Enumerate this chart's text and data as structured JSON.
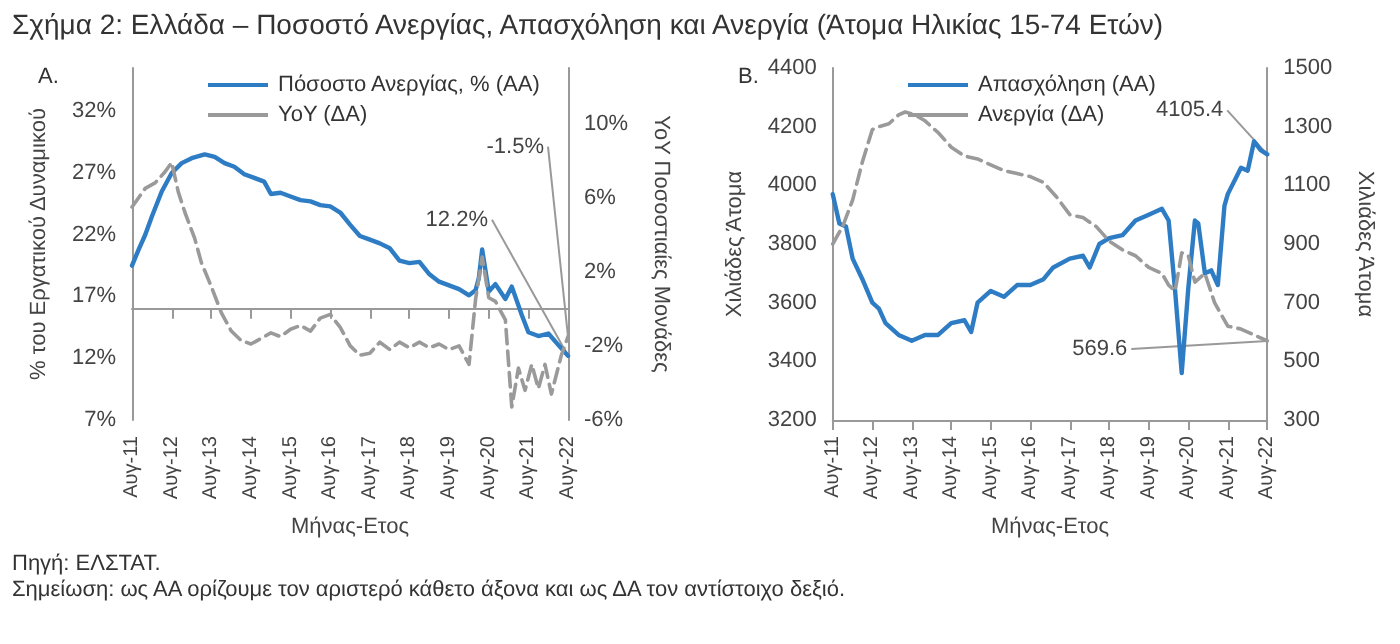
{
  "chart_data": [
    {
      "type": "line",
      "title": "Σχήμα 2: Ελλάδα – Ποσοστό Ανεργίας, Απασχόληση και Ανεργία (Άτομα Ηλικίας 15-74 Ετών)",
      "subtitle": "A.",
      "xlabel": "Μήνας-Ετος",
      "ylabel": "% του Εργατικού Δυναμικού",
      "y2label": "YoY Ποσοστιαίες Μονάδες",
      "legend": "top",
      "grid": false,
      "marker": "none",
      "xlim": [
        "2011-08",
        "2022-08"
      ],
      "xticks": [
        {
          "value": "2011-08",
          "label": "Αυγ-11"
        },
        {
          "value": "2012-08",
          "label": "Αυγ-12"
        },
        {
          "value": "2013-08",
          "label": "Αυγ-13"
        },
        {
          "value": "2014-08",
          "label": "Αυγ-14"
        },
        {
          "value": "2015-08",
          "label": "Αυγ-15"
        },
        {
          "value": "2016-08",
          "label": "Αυγ-16"
        },
        {
          "value": "2017-08",
          "label": "Αυγ-17"
        },
        {
          "value": "2018-08",
          "label": "Αυγ-18"
        },
        {
          "value": "2019-08",
          "label": "Αυγ-19"
        },
        {
          "value": "2020-08",
          "label": "Αυγ-20"
        },
        {
          "value": "2021-08",
          "label": "Αυγ-21"
        },
        {
          "value": "2022-08",
          "label": "Αυγ-22"
        }
      ],
      "ylim": [
        7,
        35.5
      ],
      "yticks": [
        {
          "value": 7,
          "label": "7%"
        },
        {
          "value": 12,
          "label": "12%"
        },
        {
          "value": 17,
          "label": "17%"
        },
        {
          "value": 22,
          "label": "22%"
        },
        {
          "value": 27,
          "label": "27%"
        },
        {
          "value": 32,
          "label": "32%"
        }
      ],
      "y2lim": [
        -6,
        13
      ],
      "y2ticks": [
        {
          "value": -6,
          "label": "-6%"
        },
        {
          "value": -2,
          "label": "-2%"
        },
        {
          "value": 2,
          "label": "2%"
        },
        {
          "value": 6,
          "label": "6%"
        },
        {
          "value": 10,
          "label": "10%"
        }
      ],
      "series": [
        {
          "name": "Πόσοστο Ανεργίας, % (ΑΑ)",
          "color": "#2e7dc4",
          "line_style": "solid",
          "x": [
            "2011-08",
            "2011-10",
            "2011-12",
            "2012-02",
            "2012-05",
            "2012-08",
            "2012-11",
            "2013-02",
            "2013-06",
            "2013-09",
            "2013-12",
            "2014-03",
            "2014-06",
            "2014-09",
            "2014-12",
            "2015-02",
            "2015-05",
            "2015-08",
            "2015-11",
            "2016-02",
            "2016-05",
            "2016-08",
            "2016-11",
            "2017-02",
            "2017-05",
            "2017-08",
            "2017-11",
            "2018-02",
            "2018-05",
            "2018-08",
            "2018-11",
            "2019-02",
            "2019-05",
            "2019-08",
            "2019-11",
            "2020-02",
            "2020-04",
            "2020-05",
            "2020-06",
            "2020-08",
            "2020-10",
            "2020-12",
            "2021-01",
            "2021-03",
            "2021-06",
            "2021-08",
            "2021-11",
            "2022-02",
            "2022-05",
            "2022-08"
          ],
          "values": [
            19.5,
            20.8,
            22,
            23.5,
            25.5,
            27,
            27.8,
            28.2,
            28.5,
            28.3,
            27.8,
            27.5,
            26.9,
            26.6,
            26.3,
            25.3,
            25.4,
            25.1,
            24.8,
            24.7,
            24.4,
            24.3,
            23.8,
            22.8,
            21.9,
            21.6,
            21.3,
            20.9,
            19.9,
            19.7,
            19.8,
            18.8,
            18.2,
            17.9,
            17.6,
            17.1,
            17.5,
            18.5,
            20.8,
            17.4,
            18,
            17.2,
            16.8,
            17.8,
            15.5,
            14.1,
            13.8,
            14,
            13.1,
            12.2
          ],
          "value_labels": [
            null,
            null,
            null,
            null,
            null,
            null,
            null,
            null,
            null,
            null,
            null,
            null,
            null,
            null,
            null,
            null,
            null,
            null,
            null,
            null,
            null,
            null,
            null,
            null,
            null,
            null,
            null,
            null,
            null,
            null,
            null,
            null,
            null,
            null,
            null,
            null,
            null,
            null,
            null,
            null,
            null,
            null,
            null,
            null,
            null,
            null,
            null,
            null,
            null,
            "12.2%"
          ]
        },
        {
          "name": "YoY (ΔΑ)",
          "color": "#9a9a9a",
          "line_style": "dashed",
          "axis": "y2",
          "x": [
            "2011-08",
            "2011-10",
            "2011-12",
            "2012-03",
            "2012-06",
            "2012-08",
            "2012-10",
            "2012-12",
            "2013-03",
            "2013-05",
            "2013-08",
            "2013-11",
            "2014-02",
            "2014-05",
            "2014-08",
            "2014-11",
            "2015-02",
            "2015-05",
            "2015-08",
            "2015-11",
            "2016-02",
            "2016-05",
            "2016-08",
            "2016-11",
            "2017-02",
            "2017-05",
            "2017-08",
            "2017-11",
            "2018-02",
            "2018-05",
            "2018-08",
            "2018-11",
            "2019-02",
            "2019-05",
            "2019-08",
            "2019-11",
            "2020-02",
            "2020-04",
            "2020-06",
            "2020-08",
            "2020-10",
            "2021-01",
            "2021-03",
            "2021-05",
            "2021-07",
            "2021-09",
            "2021-11",
            "2022-01",
            "2022-03",
            "2022-06",
            "2022-08"
          ],
          "values": [
            5.5,
            6,
            6.5,
            6.8,
            7.4,
            7.9,
            6.3,
            5.2,
            3.8,
            2.5,
            1.2,
            -0.2,
            -1.2,
            -1.7,
            -1.9,
            -1.6,
            -1.3,
            -1.5,
            -1.1,
            -0.9,
            -1.2,
            -0.5,
            -0.3,
            -1,
            -2,
            -2.5,
            -2.4,
            -1.8,
            -2.2,
            -1.8,
            -2.1,
            -1.8,
            -2.1,
            -1.9,
            -2.2,
            -2,
            -3,
            0.5,
            2.8,
            0.6,
            0.4,
            -0.6,
            -5.3,
            -3.2,
            -4.4,
            -3,
            -4.3,
            -3,
            -4.6,
            -2.5,
            -1.5
          ],
          "value_labels": [
            null,
            null,
            null,
            null,
            null,
            null,
            null,
            null,
            null,
            null,
            null,
            null,
            null,
            null,
            null,
            null,
            null,
            null,
            null,
            null,
            null,
            null,
            null,
            null,
            null,
            null,
            null,
            null,
            null,
            null,
            null,
            null,
            null,
            null,
            null,
            null,
            null,
            null,
            null,
            null,
            null,
            null,
            null,
            null,
            null,
            null,
            null,
            null,
            null,
            null,
            "-1.5%"
          ]
        }
      ]
    },
    {
      "type": "line",
      "title": "B.",
      "xlabel": "Μήνας-Ετος",
      "ylabel": "Χιλιάδες Άτομα",
      "y2label": "Χιλιάδες Άτομα",
      "legend": "top",
      "grid": false,
      "marker": "none",
      "xlim": [
        "2011-08",
        "2022-08"
      ],
      "xticks": [
        {
          "value": "2011-08",
          "label": "Αυγ-11"
        },
        {
          "value": "2012-08",
          "label": "Αυγ-12"
        },
        {
          "value": "2013-08",
          "label": "Αυγ-13"
        },
        {
          "value": "2014-08",
          "label": "Αυγ-14"
        },
        {
          "value": "2015-08",
          "label": "Αυγ-15"
        },
        {
          "value": "2016-08",
          "label": "Αυγ-16"
        },
        {
          "value": "2017-08",
          "label": "Αυγ-17"
        },
        {
          "value": "2018-08",
          "label": "Αυγ-18"
        },
        {
          "value": "2019-08",
          "label": "Αυγ-19"
        },
        {
          "value": "2020-08",
          "label": "Αυγ-20"
        },
        {
          "value": "2021-08",
          "label": "Αυγ-21"
        },
        {
          "value": "2022-08",
          "label": "Αυγ-22"
        }
      ],
      "ylim": [
        3200,
        4400
      ],
      "yticks": [
        3200,
        3400,
        3600,
        3800,
        4000,
        4200,
        4400
      ],
      "y2lim": [
        300,
        1500
      ],
      "y2ticks": [
        300,
        500,
        700,
        900,
        1100,
        1300,
        1500
      ],
      "annotations": [
        "Πηγή: ΕΛΣΤΑΤ.",
        "Σημείωση: ως ΑΑ ορίζουμε τον αριστερό κάθετο άξονα και ως ΔΑ τον αντίστοιχο δεξιό."
      ],
      "series": [
        {
          "name": "Απασχόληση (ΑΑ)",
          "color": "#2e7dc4",
          "line_style": "solid",
          "x": [
            "2011-08",
            "2011-10",
            "2011-12",
            "2012-02",
            "2012-05",
            "2012-08",
            "2012-10",
            "2012-12",
            "2013-04",
            "2013-08",
            "2013-12",
            "2014-04",
            "2014-08",
            "2014-12",
            "2015-02",
            "2015-04",
            "2015-08",
            "2015-12",
            "2016-04",
            "2016-08",
            "2016-12",
            "2017-03",
            "2017-08",
            "2017-12",
            "2018-02",
            "2018-05",
            "2018-08",
            "2018-12",
            "2019-04",
            "2019-08",
            "2019-12",
            "2020-02",
            "2020-04",
            "2020-06",
            "2020-08",
            "2020-10",
            "2020-11",
            "2021-01",
            "2021-03",
            "2021-05",
            "2021-07",
            "2021-08",
            "2021-12",
            "2022-02",
            "2022-04",
            "2022-06",
            "2022-08"
          ],
          "values": [
            3970,
            3870,
            3860,
            3750,
            3680,
            3600,
            3580,
            3530,
            3490,
            3470,
            3490,
            3490,
            3530,
            3540,
            3500,
            3600,
            3640,
            3620,
            3660,
            3660,
            3680,
            3720,
            3750,
            3760,
            3720,
            3800,
            3820,
            3830,
            3880,
            3900,
            3920,
            3880,
            3640,
            3360,
            3650,
            3880,
            3870,
            3700,
            3710,
            3660,
            3930,
            3970,
            4060,
            4050,
            4150,
            4120,
            4105.4
          ],
          "value_labels": [
            null,
            null,
            null,
            null,
            null,
            null,
            null,
            null,
            null,
            null,
            null,
            null,
            null,
            null,
            null,
            null,
            null,
            null,
            null,
            null,
            null,
            null,
            null,
            null,
            null,
            null,
            null,
            null,
            null,
            null,
            null,
            null,
            null,
            null,
            null,
            null,
            null,
            null,
            null,
            null,
            null,
            null,
            null,
            null,
            null,
            null,
            "4105.4"
          ]
        },
        {
          "name": "Ανεργία (ΔΑ)",
          "color": "#9a9a9a",
          "line_style": "dashed",
          "axis": "y2",
          "x": [
            "2011-08",
            "2011-11",
            "2012-02",
            "2012-05",
            "2012-08",
            "2012-10",
            "2013-01",
            "2013-04",
            "2013-06",
            "2013-09",
            "2013-12",
            "2014-04",
            "2014-08",
            "2014-12",
            "2015-04",
            "2015-08",
            "2015-12",
            "2016-04",
            "2016-08",
            "2016-12",
            "2017-04",
            "2017-08",
            "2017-12",
            "2018-04",
            "2018-08",
            "2018-12",
            "2019-04",
            "2019-08",
            "2019-12",
            "2020-02",
            "2020-04",
            "2020-06",
            "2020-08",
            "2020-10",
            "2021-01",
            "2021-04",
            "2021-08",
            "2021-12",
            "2022-04",
            "2022-08"
          ],
          "values": [
            900,
            960,
            1050,
            1180,
            1290,
            1300,
            1310,
            1340,
            1350,
            1340,
            1320,
            1280,
            1230,
            1200,
            1190,
            1170,
            1150,
            1140,
            1130,
            1110,
            1060,
            1000,
            990,
            960,
            910,
            880,
            860,
            820,
            800,
            760,
            740,
            870,
            860,
            770,
            800,
            700,
            620,
            610,
            590,
            569.6
          ],
          "value_labels": [
            null,
            null,
            null,
            null,
            null,
            null,
            null,
            null,
            null,
            null,
            null,
            null,
            null,
            null,
            null,
            null,
            null,
            null,
            null,
            null,
            null,
            null,
            null,
            null,
            null,
            null,
            null,
            null,
            null,
            null,
            null,
            null,
            null,
            null,
            null,
            null,
            null,
            null,
            null,
            "569.6"
          ]
        }
      ]
    }
  ]
}
